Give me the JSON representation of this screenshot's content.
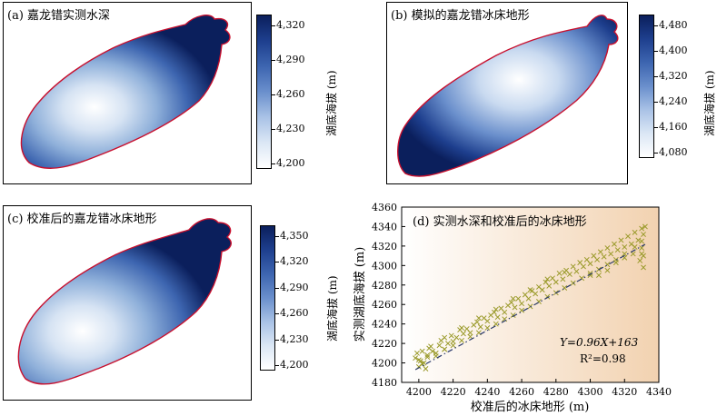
{
  "colors": {
    "outline": "#c8102e",
    "deep": "#0b1f5c",
    "light": "#ffffff",
    "fit_line": "#2b3a6b",
    "scatter": "#9a9a2a",
    "panel_d_bg_end": "#f2d2b0"
  },
  "panels": {
    "a": {
      "title": "(a) 嘉龙错实测水深",
      "colorbar": {
        "label": "湖底海拔 (m)",
        "ticks": [
          "4,320",
          "4,290",
          "4,260",
          "4,230",
          "4,200"
        ]
      }
    },
    "b": {
      "title": "(b) 模拟的嘉龙错冰床地形",
      "colorbar": {
        "label": "湖底海拔 (m)",
        "ticks": [
          "4,480",
          "4,400",
          "4,320",
          "4,240",
          "4,160",
          "4,080"
        ]
      }
    },
    "c": {
      "title": "(c) 校准后的嘉龙错冰床地形",
      "colorbar": {
        "label": "湖底海拔 (m)",
        "ticks": [
          "4,350",
          "4,320",
          "4,290",
          "4,260",
          "4,230",
          "4,200"
        ]
      }
    }
  },
  "chart_data": {
    "type": "scatter",
    "title": "(d) 实测水深和校准后的冰床地形",
    "xlabel": "校准后的冰床地形 (m)",
    "ylabel": "实测湖底海拔 (m)",
    "xlim": [
      4190,
      4340
    ],
    "ylim": [
      4180,
      4360
    ],
    "xticks": [
      4200,
      4220,
      4240,
      4260,
      4280,
      4300,
      4320,
      4340
    ],
    "yticks": [
      4180,
      4200,
      4220,
      4240,
      4260,
      4280,
      4300,
      4320,
      4340,
      4360
    ],
    "fit": {
      "slope": 0.96,
      "intercept": 163,
      "x_range": [
        4198,
        4332
      ]
    },
    "equation_label": "Y=0.96X+163",
    "r2_label": "R²=0.98",
    "points": [
      [
        4198,
        4205
      ],
      [
        4199,
        4210
      ],
      [
        4200,
        4196
      ],
      [
        4201,
        4202
      ],
      [
        4202,
        4212
      ],
      [
        4203,
        4200
      ],
      [
        4205,
        4208
      ],
      [
        4206,
        4215
      ],
      [
        4208,
        4212
      ],
      [
        4210,
        4207
      ],
      [
        4212,
        4218
      ],
      [
        4213,
        4223
      ],
      [
        4215,
        4214
      ],
      [
        4217,
        4220
      ],
      [
        4219,
        4228
      ],
      [
        4220,
        4222
      ],
      [
        4222,
        4226
      ],
      [
        4224,
        4234
      ],
      [
        4226,
        4230
      ],
      [
        4228,
        4235
      ],
      [
        4230,
        4231
      ],
      [
        4232,
        4239
      ],
      [
        4234,
        4242
      ],
      [
        4236,
        4237
      ],
      [
        4238,
        4246
      ],
      [
        4240,
        4243
      ],
      [
        4242,
        4249
      ],
      [
        4244,
        4252
      ],
      [
        4246,
        4247
      ],
      [
        4248,
        4256
      ],
      [
        4250,
        4252
      ],
      [
        4252,
        4259
      ],
      [
        4254,
        4262
      ],
      [
        4256,
        4257
      ],
      [
        4258,
        4266
      ],
      [
        4260,
        4261
      ],
      [
        4262,
        4270
      ],
      [
        4264,
        4266
      ],
      [
        4266,
        4274
      ],
      [
        4268,
        4271
      ],
      [
        4270,
        4278
      ],
      [
        4272,
        4275
      ],
      [
        4274,
        4283
      ],
      [
        4276,
        4279
      ],
      [
        4278,
        4287
      ],
      [
        4280,
        4283
      ],
      [
        4282,
        4292
      ],
      [
        4284,
        4286
      ],
      [
        4286,
        4295
      ],
      [
        4288,
        4291
      ],
      [
        4290,
        4299
      ],
      [
        4292,
        4294
      ],
      [
        4294,
        4303
      ],
      [
        4296,
        4299
      ],
      [
        4298,
        4306
      ],
      [
        4300,
        4302
      ],
      [
        4302,
        4310
      ],
      [
        4304,
        4306
      ],
      [
        4306,
        4314
      ],
      [
        4308,
        4309
      ],
      [
        4310,
        4318
      ],
      [
        4312,
        4312
      ],
      [
        4314,
        4322
      ],
      [
        4316,
        4316
      ],
      [
        4318,
        4326
      ],
      [
        4320,
        4319
      ],
      [
        4322,
        4330
      ],
      [
        4324,
        4322
      ],
      [
        4326,
        4334
      ],
      [
        4328,
        4326
      ],
      [
        4330,
        4338
      ],
      [
        4331,
        4332
      ],
      [
        4332,
        4340
      ],
      [
        4330,
        4325
      ],
      [
        4326,
        4319
      ],
      [
        4320,
        4312
      ],
      [
        4315,
        4306
      ],
      [
        4310,
        4301
      ],
      [
        4305,
        4296
      ],
      [
        4300,
        4292
      ],
      [
        4295,
        4287
      ],
      [
        4290,
        4282
      ],
      [
        4285,
        4277
      ],
      [
        4280,
        4272
      ],
      [
        4275,
        4268
      ],
      [
        4270,
        4263
      ],
      [
        4265,
        4258
      ],
      [
        4260,
        4254
      ],
      [
        4255,
        4249
      ],
      [
        4250,
        4245
      ],
      [
        4245,
        4240
      ],
      [
        4240,
        4236
      ],
      [
        4235,
        4231
      ],
      [
        4230,
        4227
      ],
      [
        4225,
        4223
      ],
      [
        4220,
        4218
      ],
      [
        4215,
        4214
      ],
      [
        4210,
        4210
      ],
      [
        4205,
        4206
      ],
      [
        4200,
        4203
      ],
      [
        4331,
        4310
      ],
      [
        4330,
        4318
      ],
      [
        4329,
        4305
      ],
      [
        4331,
        4298
      ],
      [
        4330,
        4312
      ],
      [
        4300,
        4290
      ],
      [
        4305,
        4290
      ],
      [
        4310,
        4295
      ],
      [
        4315,
        4303
      ],
      [
        4320,
        4308
      ],
      [
        4325,
        4312
      ],
      [
        4285,
        4293
      ],
      [
        4275,
        4286
      ],
      [
        4265,
        4275
      ],
      [
        4255,
        4266
      ],
      [
        4245,
        4255
      ],
      [
        4235,
        4246
      ],
      [
        4225,
        4236
      ],
      [
        4215,
        4226
      ],
      [
        4207,
        4217
      ],
      [
        4202,
        4199
      ],
      [
        4204,
        4194
      ]
    ]
  }
}
